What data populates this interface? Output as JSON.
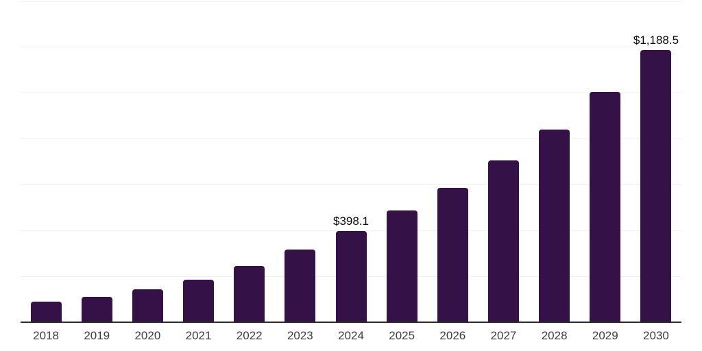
{
  "chart_data": {
    "type": "bar",
    "title": "",
    "xlabel": "",
    "ylabel": "",
    "categories": [
      "2018",
      "2019",
      "2020",
      "2021",
      "2022",
      "2023",
      "2024",
      "2025",
      "2026",
      "2027",
      "2028",
      "2029",
      "2030"
    ],
    "values": [
      91,
      112,
      145,
      186,
      246,
      317,
      398.1,
      487,
      586,
      705,
      842,
      1006,
      1188.5
    ],
    "data_labels": {
      "2024": "$398.1",
      "2030": "$1,188.5"
    },
    "ylim": [
      0,
      1400
    ],
    "gridline_step": 200,
    "grid": "horizontal-only",
    "legend_position": "none",
    "colors": {
      "bar": "#341147",
      "axis_line": "#2b2b2b",
      "gridline": "#f1f1f1",
      "xtick_label": "#3d3d3d",
      "value_label": "#0a0a0a",
      "background": "#ffffff"
    }
  }
}
